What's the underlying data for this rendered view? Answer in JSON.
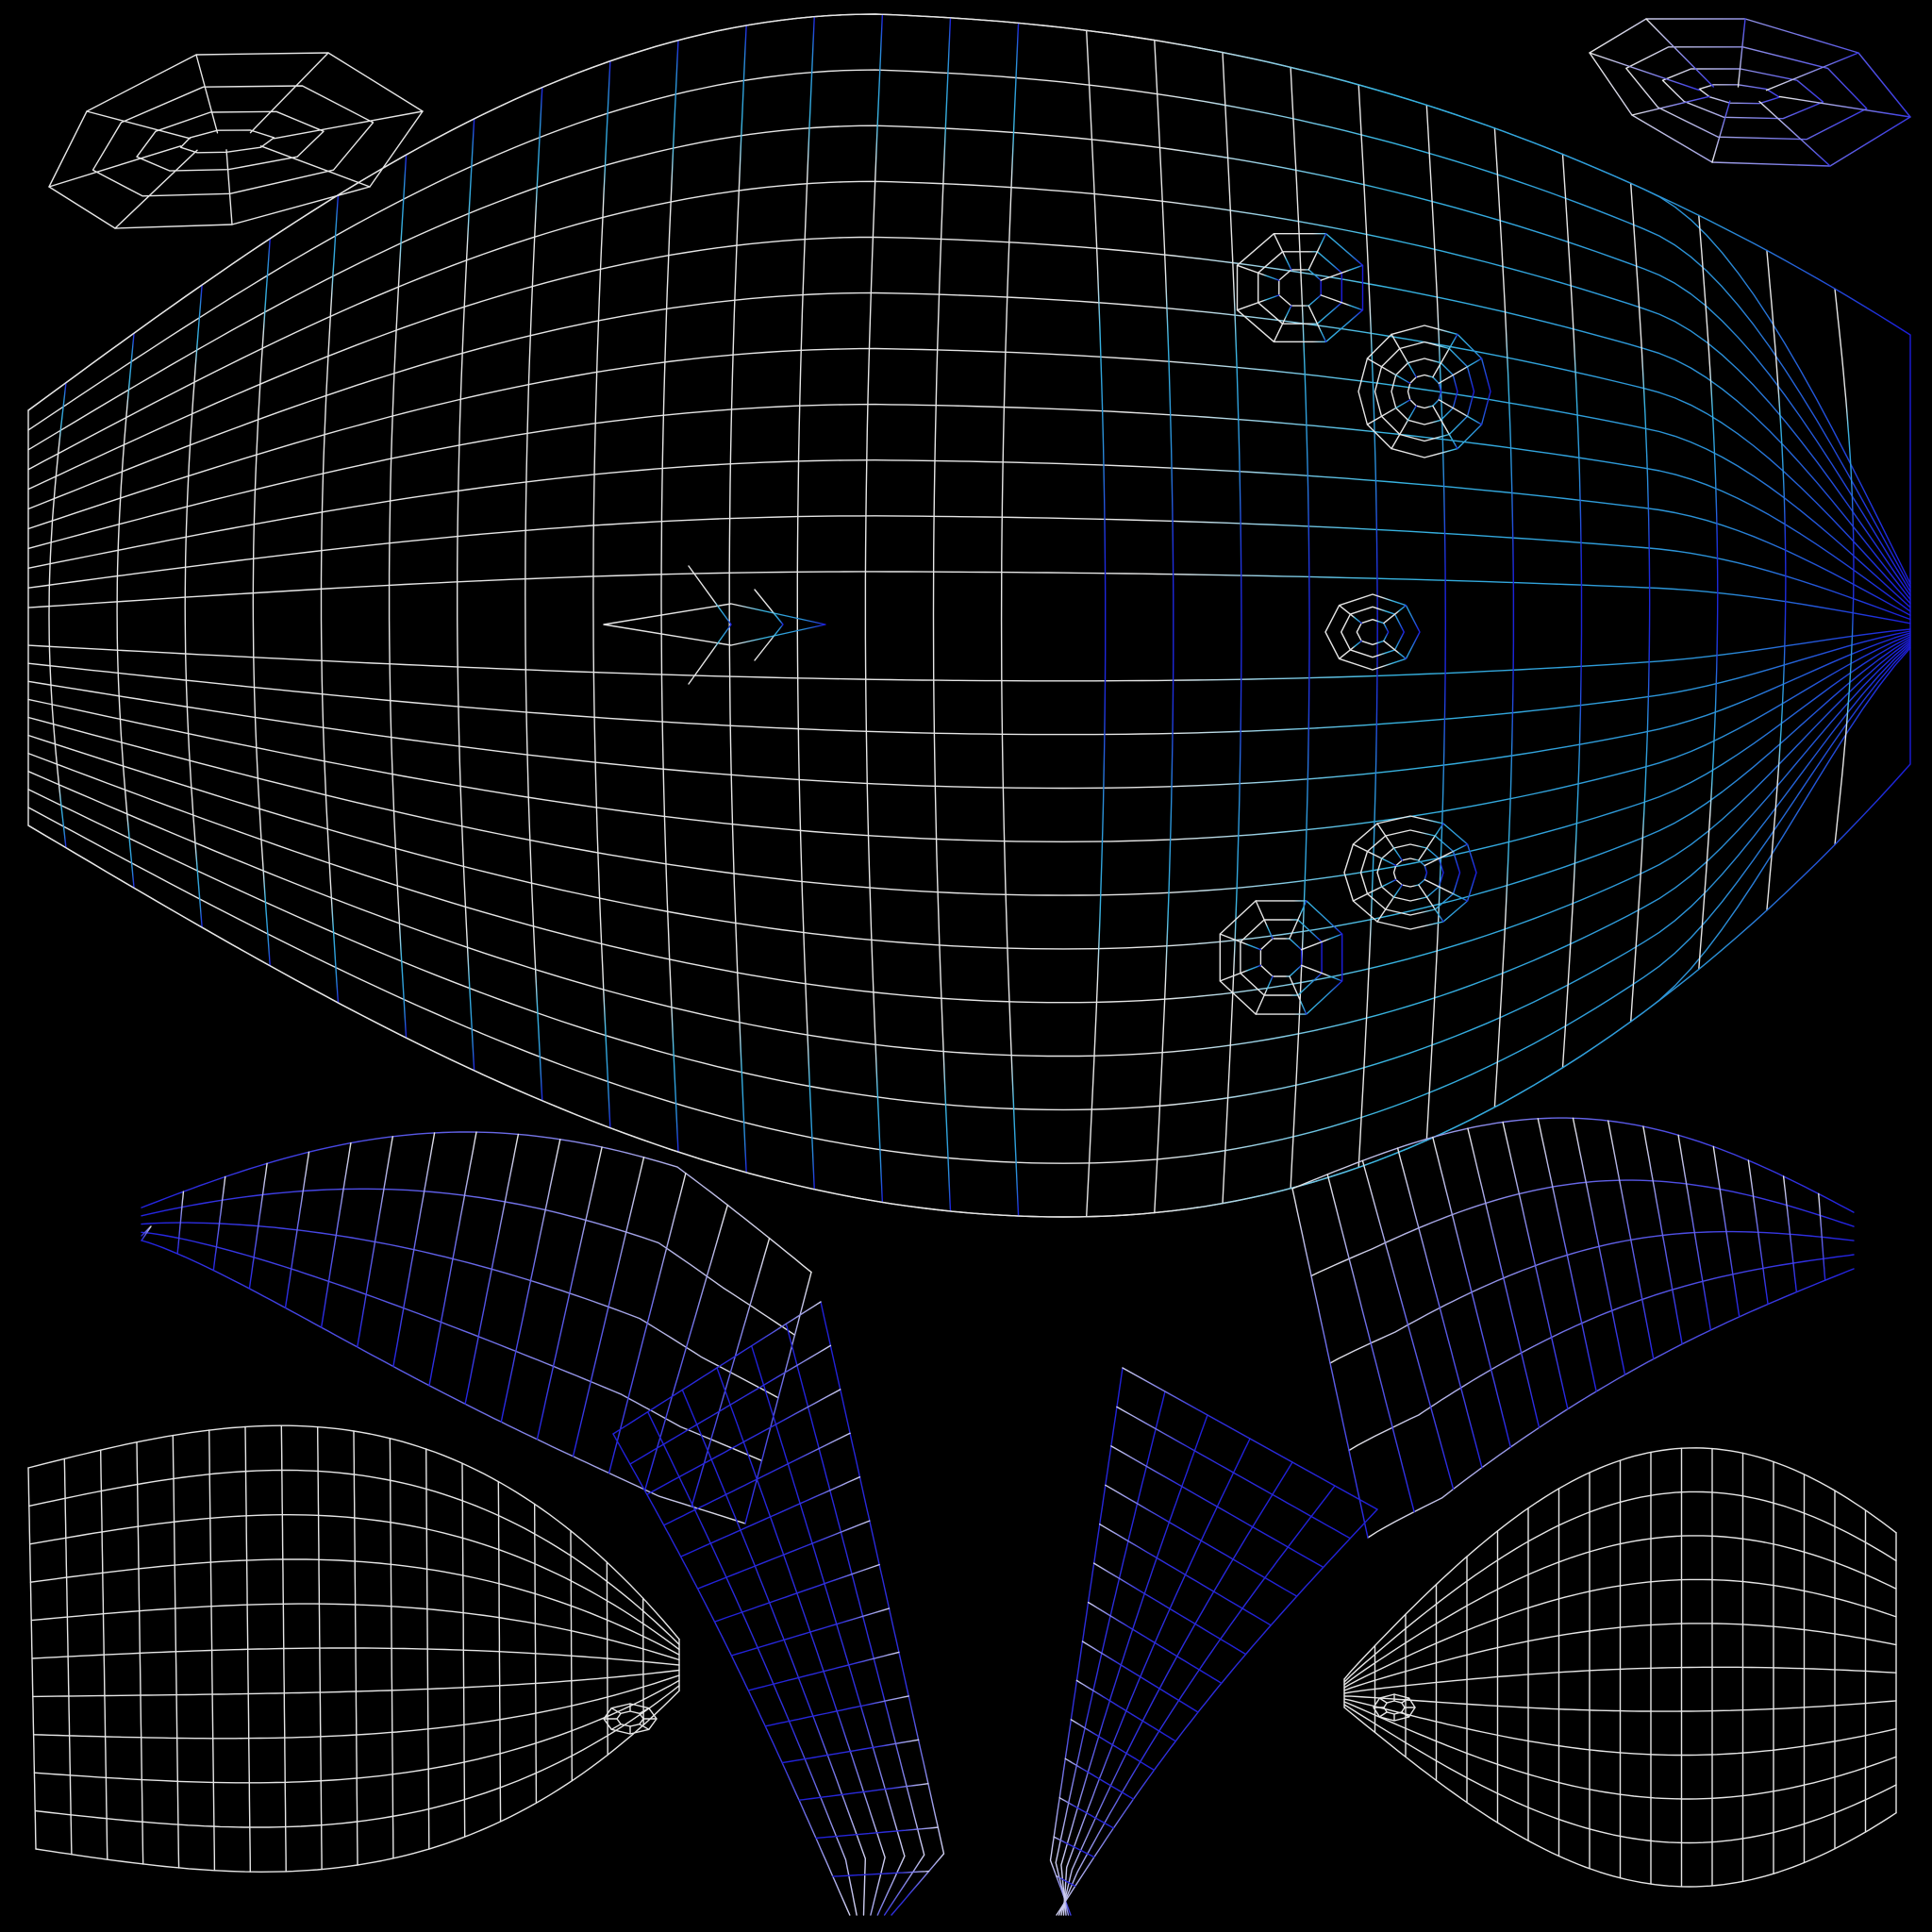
{
  "background_color": "#000000",
  "colors": {
    "white_wire": "#e6e6e6",
    "cyan_wire": "#2fa8d8",
    "blue_wire": "#1a1ae0",
    "violet_wire": "#6a5ae8"
  },
  "islands": [
    {
      "name": "body-main-island",
      "gradient": "white-to-cyan-to-blue"
    },
    {
      "name": "fin-top-left-island",
      "gradient": "white"
    },
    {
      "name": "fin-top-right-island",
      "gradient": "white-to-blue"
    },
    {
      "name": "upper-left-wing-island",
      "gradient": "blue-to-white"
    },
    {
      "name": "upper-right-wing-island",
      "gradient": "white-to-blue"
    },
    {
      "name": "lower-left-flap-island",
      "gradient": "white"
    },
    {
      "name": "lower-right-flap-island",
      "gradient": "white"
    },
    {
      "name": "left-pointed-tip-island",
      "gradient": "blue"
    },
    {
      "name": "right-pointed-tip-island",
      "gradient": "blue"
    }
  ]
}
